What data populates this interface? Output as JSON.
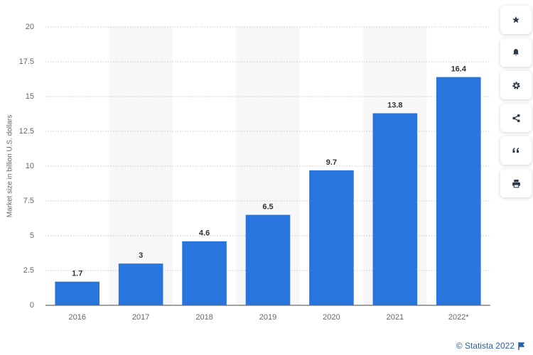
{
  "chart_data": {
    "type": "bar",
    "y_label": "Market size in billion U.S. dollars",
    "categories": [
      "2016",
      "2017",
      "2018",
      "2019",
      "2020",
      "2021",
      "2022*"
    ],
    "values": [
      1.7,
      3,
      4.6,
      6.5,
      9.7,
      13.8,
      16.4
    ],
    "color": "#2876dd",
    "ylim": [
      0,
      20
    ],
    "yticks": [
      0,
      2.5,
      5,
      7.5,
      10,
      12.5,
      15,
      17.5,
      20
    ],
    "grid": true
  },
  "footer": "© Statista 2022"
}
